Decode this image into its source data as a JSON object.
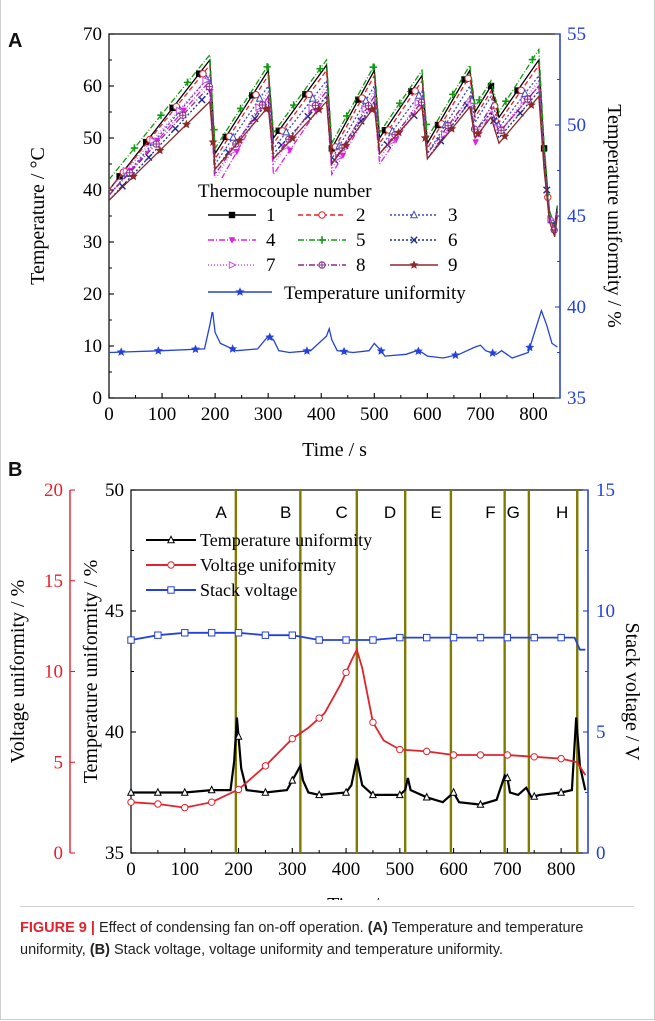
{
  "chart_data": [
    {
      "panel": "A",
      "type": "line",
      "xlabel": "Time / s",
      "ylabel": "Temperature / °C",
      "y2label": "Temperature uniformity / %",
      "xlim": [
        0,
        850
      ],
      "ylim": [
        0,
        70
      ],
      "y2lim": [
        35,
        55
      ],
      "xticks": [
        0,
        100,
        200,
        300,
        400,
        500,
        600,
        700,
        800
      ],
      "yticks": [
        0,
        10,
        20,
        30,
        40,
        50,
        60,
        70
      ],
      "y2ticks": [
        35,
        40,
        45,
        50,
        55
      ],
      "legend_title": "Thermocouple number",
      "legend_position": "center-left",
      "series": [
        {
          "name": "1",
          "color": "#000000",
          "marker": "square-filled",
          "dash": "",
          "x": [
            0,
            190,
            200,
            300,
            310,
            410,
            420,
            500,
            510,
            590,
            600,
            680,
            690,
            720,
            735,
            810,
            820,
            830,
            840,
            845
          ],
          "y": [
            40,
            65,
            47,
            63,
            50,
            64,
            48,
            63,
            50,
            62,
            49,
            63,
            55,
            60,
            54,
            65,
            48,
            36,
            33,
            37
          ]
        },
        {
          "name": "2",
          "color": "#e0232e",
          "marker": "circle-open",
          "dash": "5,3",
          "x": [
            0,
            190,
            200,
            300,
            310,
            410,
            420,
            500,
            510,
            590,
            600,
            680,
            690,
            720,
            735,
            810,
            820,
            830,
            840,
            845
          ],
          "y": [
            40,
            64,
            46,
            62,
            49,
            63,
            47,
            62,
            49,
            61,
            48,
            62,
            54,
            59,
            53,
            64,
            47,
            35,
            32,
            36
          ]
        },
        {
          "name": "3",
          "color": "#3b4cc0",
          "marker": "triangle-open",
          "dash": "2,2",
          "x": [
            0,
            190,
            200,
            300,
            310,
            410,
            420,
            500,
            510,
            590,
            600,
            680,
            690,
            720,
            735,
            810,
            820,
            830,
            840,
            845
          ],
          "y": [
            39,
            62,
            45,
            60,
            48,
            61,
            46,
            60,
            48,
            59,
            47,
            60,
            53,
            58,
            52,
            62,
            46,
            35,
            33,
            36
          ]
        },
        {
          "name": "4",
          "color": "#e11fe0",
          "marker": "triangle-down-filled",
          "dash": "6,2,1,2",
          "x": [
            0,
            190,
            200,
            300,
            310,
            410,
            420,
            500,
            510,
            590,
            600,
            680,
            690,
            720,
            735,
            810,
            820,
            830,
            840,
            845
          ],
          "y": [
            39,
            61,
            40,
            58,
            43,
            58,
            43,
            57,
            45,
            57,
            46,
            57,
            49,
            55,
            51,
            60,
            44,
            35,
            32,
            36
          ]
        },
        {
          "name": "5",
          "color": "#109a10",
          "marker": "plus",
          "dash": "6,2,1,2",
          "x": [
            0,
            190,
            200,
            300,
            310,
            410,
            420,
            500,
            510,
            590,
            600,
            680,
            690,
            720,
            735,
            810,
            820,
            830,
            840,
            845
          ],
          "y": [
            42,
            66,
            48,
            64,
            51,
            65,
            49,
            64,
            51,
            63,
            50,
            64,
            56,
            61,
            55,
            67,
            49,
            36,
            33,
            37
          ]
        },
        {
          "name": "6",
          "color": "#1c2b8f",
          "marker": "x",
          "dash": "2,2",
          "x": [
            0,
            190,
            200,
            300,
            310,
            410,
            420,
            500,
            510,
            590,
            600,
            680,
            690,
            720,
            735,
            810,
            820,
            830,
            840,
            845
          ],
          "y": [
            38,
            59,
            44,
            57,
            47,
            58,
            45,
            57,
            47,
            56,
            46,
            57,
            51,
            55,
            50,
            59,
            45,
            35,
            33,
            36
          ]
        },
        {
          "name": "7",
          "color": "#c94fe8",
          "marker": "triangle-right-open",
          "dash": "1,2",
          "x": [
            0,
            190,
            200,
            300,
            310,
            410,
            420,
            500,
            510,
            590,
            600,
            680,
            690,
            720,
            735,
            810,
            820,
            830,
            840,
            845
          ],
          "y": [
            40,
            62,
            42,
            59,
            45,
            60,
            44,
            59,
            46,
            58,
            46,
            58,
            50,
            56,
            51,
            61,
            45,
            35,
            32,
            36
          ]
        },
        {
          "name": "8",
          "color": "#8a2c8a",
          "marker": "circle-cross",
          "dash": "6,2,1,2",
          "x": [
            0,
            190,
            200,
            300,
            310,
            410,
            420,
            500,
            510,
            590,
            600,
            680,
            690,
            720,
            735,
            810,
            820,
            830,
            840,
            845
          ],
          "y": [
            39,
            60,
            43,
            58,
            46,
            59,
            45,
            58,
            47,
            57,
            47,
            58,
            51,
            56,
            51,
            60,
            45,
            35,
            32,
            36
          ]
        },
        {
          "name": "9",
          "color": "#8b2a2a",
          "marker": "star",
          "dash": "",
          "x": [
            0,
            190,
            200,
            300,
            310,
            410,
            420,
            500,
            510,
            590,
            600,
            680,
            690,
            720,
            735,
            810,
            820,
            830,
            840,
            845
          ],
          "y": [
            38,
            57,
            44,
            56,
            46,
            57,
            45,
            56,
            47,
            56,
            46,
            56,
            50,
            54,
            49,
            58,
            44,
            34,
            31,
            35
          ]
        },
        {
          "name": "Temperature uniformity",
          "color": "#2442d9",
          "marker": "star-filled",
          "dash": "",
          "axis": "y2",
          "x": [
            0,
            100,
            180,
            190,
            195,
            200,
            210,
            240,
            280,
            300,
            310,
            320,
            340,
            380,
            410,
            415,
            420,
            430,
            460,
            490,
            500,
            510,
            520,
            560,
            580,
            590,
            600,
            630,
            660,
            690,
            700,
            710,
            730,
            740,
            760,
            790,
            815,
            825,
            835,
            845
          ],
          "y": [
            37.5,
            37.6,
            37.7,
            39,
            39.8,
            38.6,
            38.0,
            37.6,
            37.7,
            38.4,
            38.2,
            37.6,
            37.5,
            37.6,
            38.4,
            38.8,
            38.2,
            37.6,
            37.5,
            37.6,
            38.0,
            37.7,
            37.3,
            37.4,
            37.6,
            37.5,
            37.3,
            37.2,
            37.4,
            37.8,
            37.9,
            37.6,
            37.4,
            37.6,
            37.2,
            37.5,
            39.8,
            39,
            38.0,
            37.8
          ]
        }
      ]
    },
    {
      "panel": "B",
      "type": "line",
      "xlabel": "Time / s",
      "ylabel": "Temperature uniformity / %",
      "y_left_outer_label": "Voltage uniformity / %",
      "y2label": "Stack voltage / V",
      "xlim": [
        0,
        850
      ],
      "ylim": [
        35,
        50
      ],
      "y_outer_lim": [
        0,
        20
      ],
      "y2lim": [
        0,
        15
      ],
      "xticks": [
        0,
        100,
        200,
        300,
        400,
        500,
        600,
        700,
        800
      ],
      "yticks": [
        35,
        40,
        45,
        50
      ],
      "y_outer_ticks": [
        0,
        5,
        10,
        15,
        20
      ],
      "y2ticks": [
        0,
        5,
        10,
        15
      ],
      "legend_position": "top-left",
      "events": {
        "labels": [
          "A",
          "B",
          "C",
          "D",
          "E",
          "F",
          "G",
          "H"
        ],
        "x": [
          195,
          315,
          420,
          510,
          595,
          695,
          740,
          830
        ],
        "color": "#7f7a00"
      },
      "series": [
        {
          "name": "Temperature uniformity",
          "color": "#000000",
          "marker": "triangle-open",
          "axis": "y",
          "x": [
            0,
            50,
            100,
            150,
            185,
            192,
            197,
            205,
            215,
            250,
            290,
            305,
            315,
            320,
            330,
            350,
            400,
            410,
            420,
            430,
            450,
            500,
            510,
            515,
            520,
            550,
            580,
            595,
            600,
            610,
            650,
            680,
            695,
            700,
            705,
            720,
            735,
            745,
            760,
            800,
            820,
            828,
            835,
            845
          ],
          "y": [
            37.5,
            37.5,
            37.5,
            37.6,
            37.6,
            38.8,
            40.6,
            38.5,
            37.6,
            37.5,
            37.6,
            38.2,
            38.6,
            38.0,
            37.5,
            37.4,
            37.5,
            37.8,
            38.9,
            37.8,
            37.4,
            37.4,
            37.6,
            38.1,
            37.6,
            37.3,
            37.1,
            37.4,
            37.5,
            37.1,
            37.0,
            37.2,
            38.2,
            38.1,
            37.5,
            37.4,
            37.7,
            37.3,
            37.4,
            37.5,
            37.6,
            40.6,
            38.6,
            37.6
          ]
        },
        {
          "name": "Voltage uniformity",
          "color": "#e0232e",
          "marker": "circle-open",
          "axis": "y_outer",
          "x": [
            0,
            50,
            100,
            150,
            200,
            250,
            300,
            330,
            360,
            390,
            410,
            420,
            430,
            450,
            470,
            500,
            550,
            600,
            650,
            700,
            750,
            800,
            830,
            845
          ],
          "y": [
            2.8,
            2.7,
            2.5,
            2.8,
            3.5,
            4.8,
            6.3,
            6.9,
            7.7,
            9.3,
            10.6,
            11.2,
            10.2,
            7.2,
            6.2,
            5.7,
            5.6,
            5.4,
            5.4,
            5.4,
            5.3,
            5.2,
            5.0,
            4.3
          ]
        },
        {
          "name": "Stack voltage",
          "color": "#2442d9",
          "marker": "square-open",
          "axis": "y2",
          "x": [
            0,
            50,
            100,
            150,
            200,
            250,
            300,
            350,
            400,
            450,
            500,
            550,
            600,
            650,
            700,
            750,
            800,
            825,
            835,
            845
          ],
          "y": [
            8.8,
            9.0,
            9.1,
            9.1,
            9.1,
            9.0,
            9.0,
            8.8,
            8.8,
            8.8,
            8.9,
            8.9,
            8.9,
            8.9,
            8.9,
            8.9,
            8.9,
            8.9,
            8.4,
            8.4
          ]
        }
      ]
    }
  ],
  "figure": {
    "panel_a_letter": "A",
    "panel_b_letter": "B",
    "caption_label": "FIGURE 9 |",
    "caption_text": " Effect of condensing fan on-off operation.",
    "caption_a_tag": "(A)",
    "caption_a_text": " Temperature and temperature uniformity,",
    "caption_b_tag": "(B)",
    "caption_b_text": " Stack voltage, voltage uniformity and temperature uniformity.",
    "colors": {
      "left_axis_b": "#e0232e",
      "right_axis": "#2442d9",
      "event_line": "#7f7a00"
    }
  }
}
